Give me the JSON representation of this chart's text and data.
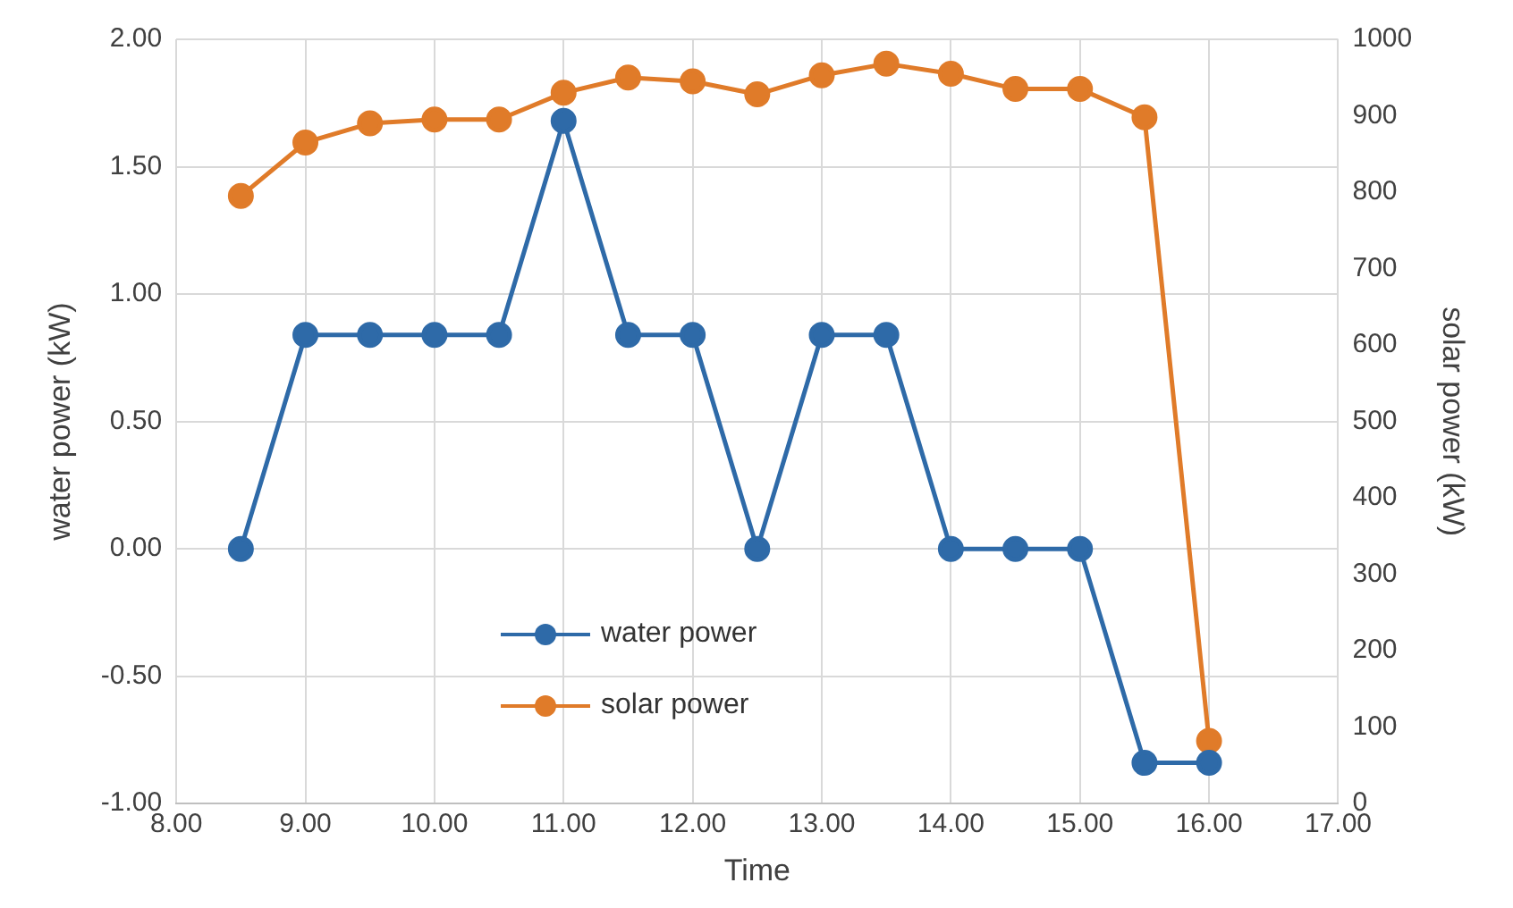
{
  "chart_data": {
    "type": "line",
    "xlabel": "Time",
    "ylabel": "water power (kW)",
    "y2label": "solar power (kW)",
    "x": [
      8.5,
      9,
      9.5,
      10,
      10.5,
      11,
      11.5,
      12,
      12.5,
      13,
      13.5,
      14,
      14.5,
      15,
      15.5,
      16
    ],
    "series": [
      {
        "name": "water power",
        "color": "#2e6aa8",
        "values": [
          0,
          0.84,
          0.84,
          0.84,
          0.84,
          1.68,
          0.84,
          0.84,
          0,
          0.84,
          0.84,
          0,
          0,
          0,
          -0.84,
          -0.84
        ]
      },
      {
        "name": "solar power",
        "color": "#e07b29",
        "axis": "y2",
        "values": [
          795,
          865,
          890,
          895,
          895,
          930,
          950,
          945,
          928,
          953,
          968,
          955,
          935,
          935,
          898,
          82
        ]
      }
    ],
    "xlim": [
      8,
      17
    ],
    "xticks": [
      {
        "value": 8,
        "label": "8.00"
      },
      {
        "value": 9,
        "label": "9.00"
      },
      {
        "value": 10,
        "label": "10.00"
      },
      {
        "value": 11,
        "label": "11.00"
      },
      {
        "value": 12,
        "label": "12.00"
      },
      {
        "value": 13,
        "label": "13.00"
      },
      {
        "value": 14,
        "label": "14.00"
      },
      {
        "value": 15,
        "label": "15.00"
      },
      {
        "value": 16,
        "label": "16.00"
      },
      {
        "value": 17,
        "label": "17.00"
      }
    ],
    "ylim": [
      -1,
      2
    ],
    "yticks": [
      {
        "value": -1,
        "label": "-1.00"
      },
      {
        "value": -0.5,
        "label": "-0.50"
      },
      {
        "value": 0,
        "label": "0.00"
      },
      {
        "value": 0.5,
        "label": "0.50"
      },
      {
        "value": 1,
        "label": "1.00"
      },
      {
        "value": 1.5,
        "label": "1.50"
      },
      {
        "value": 2,
        "label": "2.00"
      }
    ],
    "y2lim": [
      0,
      1000
    ],
    "y2ticks": [
      0,
      100,
      200,
      300,
      400,
      500,
      600,
      700,
      800,
      900,
      1000
    ],
    "grid": true,
    "legend": "bottom",
    "marker": "circle",
    "line_style": "solid"
  }
}
